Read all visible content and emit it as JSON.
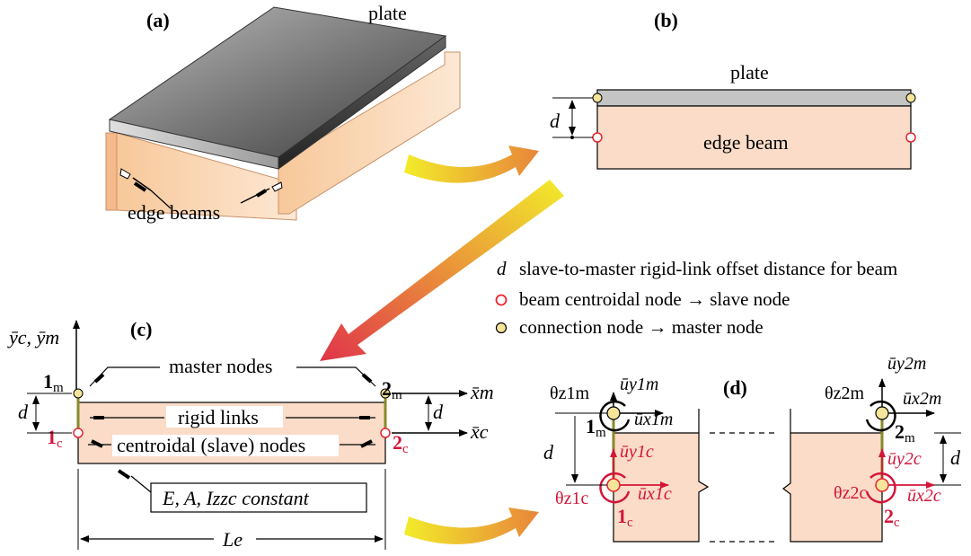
{
  "panels": {
    "a": {
      "label": "(a)",
      "plate_label": "plate",
      "edge_beams_label": "edge beams"
    },
    "b": {
      "label": "(b)",
      "plate_label": "plate",
      "edge_beam_label": "edge beam",
      "offset_symbol": "d"
    },
    "c": {
      "label": "(c)",
      "axis_y_label": "ȳc, ȳm",
      "master_nodes_label": "master nodes",
      "rigid_links_label": "rigid links",
      "centroidal_nodes_label": "centroidal (slave) nodes",
      "properties_label": "E, A, Izzc constant",
      "length_label": "Le",
      "x_master_label": "x̄m",
      "x_centroid_label": "x̄c",
      "node_1m": "1m",
      "node_2m": "2m",
      "node_1c": "1c",
      "node_2c": "2c",
      "offset_symbol": "d"
    },
    "d": {
      "label": "(d)",
      "offset_symbol": "d",
      "left": {
        "theta_m": "θz1m",
        "uy_m": "ūy1m",
        "ux_m": "ūx1m",
        "node_m": "1m",
        "uy_c": "ūy1c",
        "theta_c": "θz1c",
        "ux_c": "ūx1c",
        "node_c": "1c"
      },
      "right": {
        "theta_m": "θz2m",
        "uy_m": "ūy2m",
        "ux_m": "ūx2m",
        "node_m": "2m",
        "uy_c": "ūy2c",
        "theta_c": "θz2c",
        "ux_c": "ūx2c",
        "node_c": "2c"
      }
    }
  },
  "legend": {
    "offset": {
      "symbol": "d",
      "text": "slave-to-master rigid-link offset distance for beam"
    },
    "slave": {
      "text": "beam centroidal node → slave node",
      "color": "#e8242f"
    },
    "master": {
      "text": "connection node → master node",
      "color": "#f5e59a"
    }
  },
  "colors": {
    "beam_fill": "#fadcc8",
    "plate_fill": "#c8c8c8",
    "accent_red": "#d4153a",
    "arrow_yellow": "#f2ec2a",
    "arrow_orange": "#e8853a",
    "link_olive": "#8a8a2a"
  }
}
